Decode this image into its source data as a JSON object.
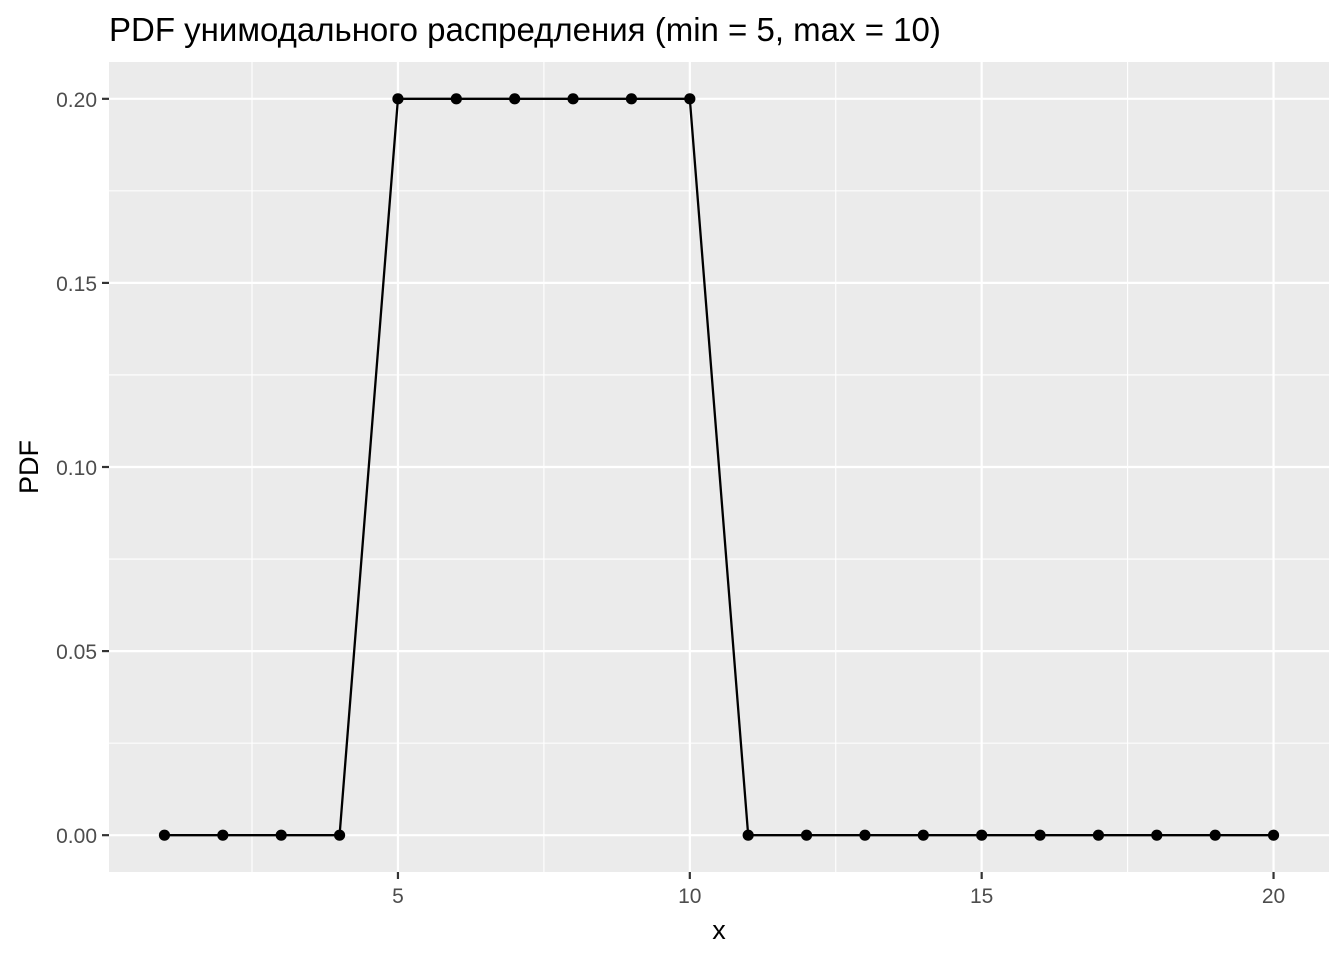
{
  "chart_data": {
    "type": "line",
    "title": "PDF унимодального распредления (min = 5, max = 10)",
    "xlabel": "x",
    "ylabel": "PDF",
    "x": [
      1,
      2,
      3,
      4,
      5,
      6,
      7,
      8,
      9,
      10,
      11,
      12,
      13,
      14,
      15,
      16,
      17,
      18,
      19,
      20
    ],
    "y": [
      0,
      0,
      0,
      0,
      0.2,
      0.2,
      0.2,
      0.2,
      0.2,
      0.2,
      0,
      0,
      0,
      0,
      0,
      0,
      0,
      0,
      0,
      0
    ],
    "xlim": [
      0.05,
      20.95
    ],
    "ylim": [
      -0.01,
      0.21
    ],
    "x_ticks": [
      5,
      10,
      15,
      20
    ],
    "x_tick_labels": [
      "5",
      "10",
      "15",
      "20"
    ],
    "x_minor_ticks": [
      2.5,
      7.5,
      12.5,
      17.5
    ],
    "y_ticks": [
      0,
      0.05,
      0.1,
      0.15,
      0.2
    ],
    "y_tick_labels": [
      "0.00",
      "0.05",
      "0.10",
      "0.15",
      "0.20"
    ],
    "y_minor_ticks": [
      0.025,
      0.075,
      0.125,
      0.175
    ],
    "grid": true,
    "markers": "points",
    "colors": {
      "panel_background": "#ebebeb",
      "grid_major": "#ffffff",
      "grid_minor": "#ffffff",
      "line": "#000000",
      "point": "#000000",
      "tick_label": "#4d4d4d",
      "axis_title": "#000000"
    }
  }
}
